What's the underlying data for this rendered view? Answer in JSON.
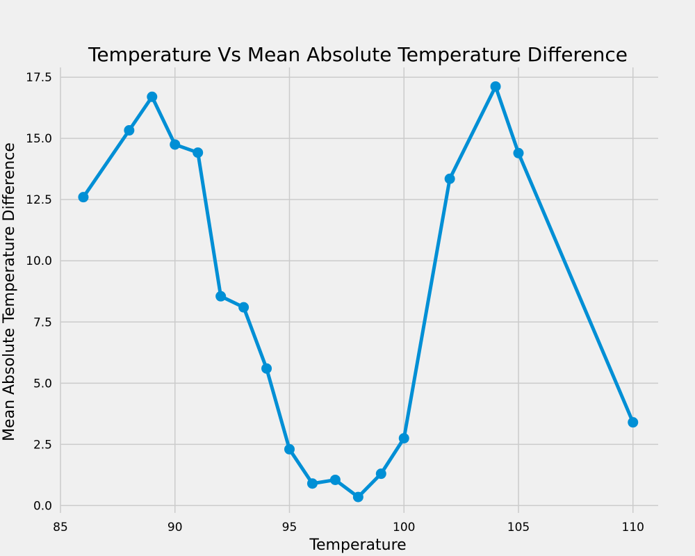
{
  "chart_data": {
    "type": "line",
    "title": "Temperature Vs Mean Absolute Temperature Difference",
    "xlabel": "Temperature",
    "ylabel": "Mean Absolute Temperature Difference",
    "xlim": [
      85,
      111.1
    ],
    "ylim": [
      -0.3,
      17.9
    ],
    "xticks": [
      85,
      90,
      95,
      100,
      105,
      110
    ],
    "xtick_labels": [
      "85",
      "90",
      "95",
      "100",
      "105",
      "110"
    ],
    "yticks": [
      0,
      2.5,
      5,
      7.5,
      10,
      12.5,
      15,
      17.5
    ],
    "ytick_labels": [
      "0.0",
      "2.5",
      "5.0",
      "7.5",
      "10.0",
      "12.5",
      "15.0",
      "17.5"
    ],
    "grid": true,
    "series": [
      {
        "color": "#008fd5",
        "marker": "circle",
        "x": [
          86,
          88,
          89,
          90,
          91,
          92,
          93,
          94,
          95,
          96,
          97,
          98,
          99,
          100,
          102,
          104,
          105,
          110
        ],
        "y": [
          12.6,
          15.33,
          16.7,
          14.75,
          14.42,
          8.55,
          8.1,
          5.6,
          2.3,
          0.9,
          1.05,
          0.35,
          1.3,
          2.75,
          13.35,
          17.12,
          14.4,
          3.4
        ]
      }
    ]
  }
}
